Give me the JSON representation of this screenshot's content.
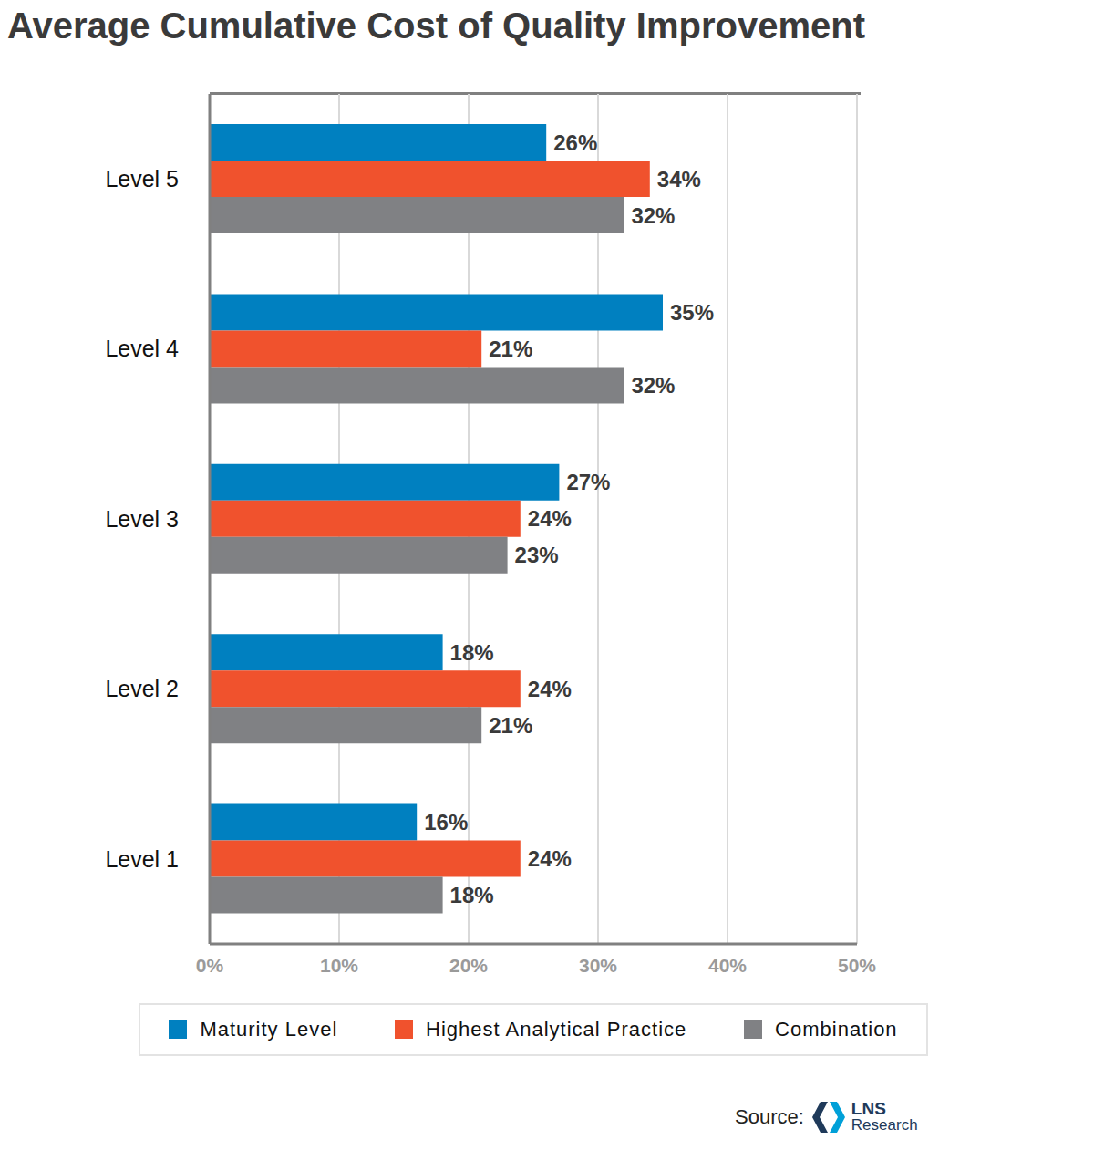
{
  "chart_data": {
    "type": "bar",
    "title": "Average Cumulative Cost of Quality Improvement",
    "orientation": "horizontal",
    "categories": [
      "Level 5",
      "Level 4",
      "Level 3",
      "Level 2",
      "Level 1"
    ],
    "series": [
      {
        "name": "Maturity Level",
        "color": "#0080c0",
        "values": [
          26,
          35,
          27,
          18,
          16
        ],
        "value_labels": [
          "26%",
          "35%",
          "27%",
          "18%",
          "16%"
        ]
      },
      {
        "name": "Highest Analytical Practice",
        "color": "#f0522d",
        "values": [
          34,
          21,
          24,
          24,
          24
        ],
        "value_labels": [
          "34%",
          "21%",
          "24%",
          "24%",
          "24%"
        ]
      },
      {
        "name": "Combination",
        "color": "#808184",
        "values": [
          32,
          32,
          23,
          21,
          18
        ],
        "value_labels": [
          "32%",
          "32%",
          "23%",
          "21%",
          "18%"
        ]
      }
    ],
    "xlim": [
      0,
      50
    ],
    "xticks": [
      {
        "value": 0,
        "label": "0%"
      },
      {
        "value": 10,
        "label": "10%"
      },
      {
        "value": 20,
        "label": "20%"
      },
      {
        "value": 30,
        "label": "30%"
      },
      {
        "value": 40,
        "label": "40%"
      },
      {
        "value": 50,
        "label": "50%"
      }
    ],
    "grid": true,
    "data_labels": true,
    "legend": "bottom",
    "source": "Source:",
    "source_logo": [
      "LNS",
      "Research"
    ]
  }
}
